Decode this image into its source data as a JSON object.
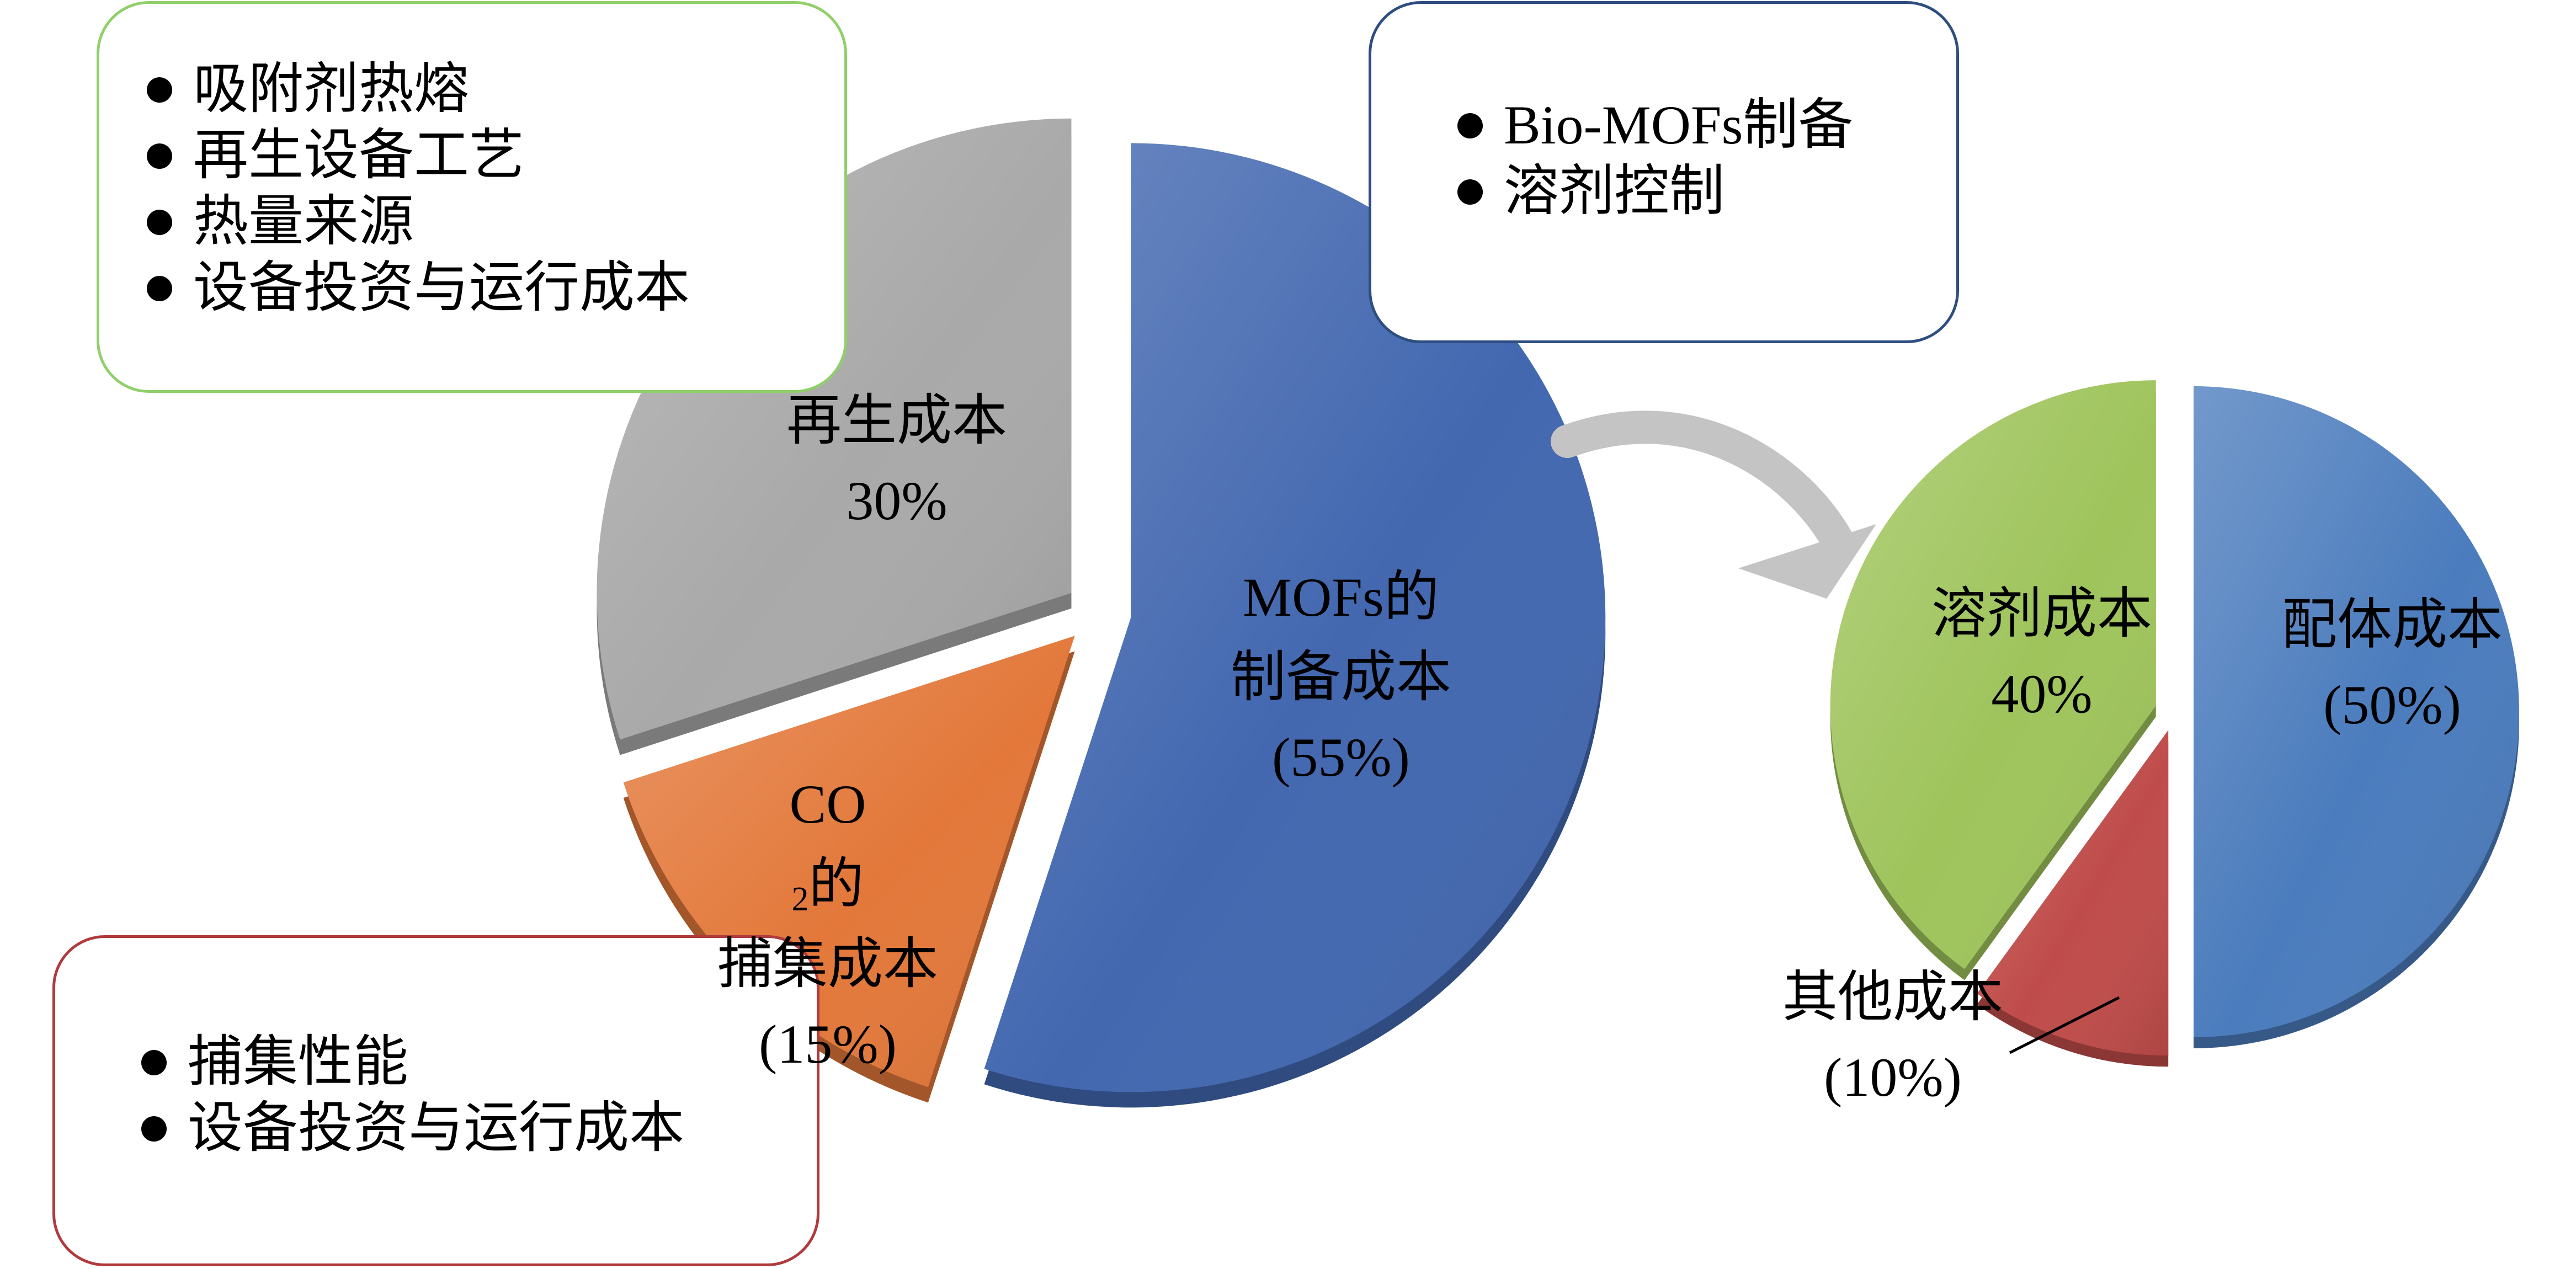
{
  "chart_data": [
    {
      "type": "pie",
      "categories": [
        "MOFs的制备成本",
        "CO2的捕集成本",
        "再生成本"
      ],
      "values": [
        55,
        15,
        30
      ],
      "colors": [
        "#4368b0",
        "#e3783a",
        "#a9a9a9"
      ],
      "exploded": true,
      "labels": [
        {
          "lines": [
            "MOFs的",
            "制备成本",
            "(55%)"
          ]
        },
        {
          "lines": [
            "CO",
            "2",
            "的",
            "捕集成本",
            "(15%)"
          ]
        },
        {
          "lines": [
            "再生成本",
            "30%"
          ]
        }
      ]
    },
    {
      "type": "pie",
      "categories": [
        "配体成本",
        "其他成本",
        "溶剂成本"
      ],
      "values": [
        50,
        10,
        40
      ],
      "colors": [
        "#4b7cbd",
        "#bf4c4a",
        "#9fc45c"
      ],
      "exploded": true,
      "labels": [
        {
          "lines": [
            "配体成本",
            "(50%)"
          ]
        },
        {
          "lines": [
            "其他成本",
            "(10%)"
          ]
        },
        {
          "lines": [
            "溶剂成本",
            "40%"
          ]
        }
      ]
    }
  ],
  "callouts": {
    "regeneration": {
      "border_color": "#90cf6a",
      "items": [
        "吸附剂热熔",
        "再生设备工艺",
        "热量来源",
        "设备投资与运行成本"
      ]
    },
    "mofs_preparation": {
      "border_color": "#2e4d80",
      "items": [
        "Bio-MOFs制备",
        "溶剂控制"
      ]
    },
    "capture": {
      "border_color": "#b03a3c",
      "items": [
        "捕集性能",
        "设备投资与运行成本"
      ]
    }
  }
}
